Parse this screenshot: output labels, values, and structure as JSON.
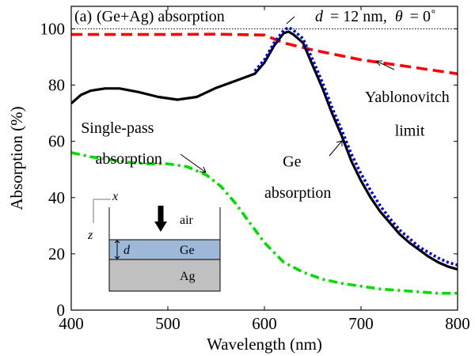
{
  "chart_data": {
    "type": "line",
    "panel_label": "(a)",
    "title": "(Ge+Ag) absorption",
    "params": {
      "d_symbol": "d",
      "d_value": "= 12 nm,",
      "theta_symbol": "θ",
      "theta_value": "= 0˚"
    },
    "xlabel": "Wavelength (nm)",
    "ylabel": "Absorption (%)",
    "xlim": [
      400,
      800
    ],
    "ylim": [
      0,
      108
    ],
    "x_ticks": [
      400,
      500,
      600,
      700,
      800
    ],
    "y_ticks": [
      0,
      20,
      40,
      60,
      80,
      100
    ],
    "reference_line": {
      "y": 100,
      "style": "dotted"
    },
    "series": [
      {
        "key": "yablonovitch",
        "color": "#ff0000",
        "style": "dashed",
        "points": [
          [
            400,
            98
          ],
          [
            450,
            98
          ],
          [
            500,
            98
          ],
          [
            550,
            98.1
          ],
          [
            600,
            97.8
          ],
          [
            620,
            95
          ],
          [
            650,
            92.5
          ],
          [
            700,
            89
          ],
          [
            750,
            86.5
          ],
          [
            800,
            84
          ]
        ]
      },
      {
        "key": "ge_ag",
        "color": "#000000",
        "style": "solid",
        "points": [
          [
            400,
            73.5
          ],
          [
            410,
            76.5
          ],
          [
            420,
            78
          ],
          [
            435,
            78.8
          ],
          [
            450,
            78.8
          ],
          [
            470,
            77.5
          ],
          [
            490,
            75.8
          ],
          [
            510,
            74.8
          ],
          [
            530,
            75.8
          ],
          [
            550,
            79
          ],
          [
            570,
            81.5
          ],
          [
            590,
            84
          ],
          [
            600,
            88
          ],
          [
            610,
            94
          ],
          [
            620,
            98.5
          ],
          [
            625,
            99
          ],
          [
            630,
            98
          ],
          [
            640,
            95
          ],
          [
            650,
            87
          ],
          [
            660,
            79
          ],
          [
            670,
            70
          ],
          [
            680,
            62
          ],
          [
            690,
            53
          ],
          [
            700,
            46
          ],
          [
            710,
            40
          ],
          [
            720,
            35
          ],
          [
            730,
            31
          ],
          [
            740,
            27
          ],
          [
            750,
            24
          ],
          [
            760,
            21.5
          ],
          [
            770,
            19
          ],
          [
            780,
            17
          ],
          [
            790,
            15.5
          ],
          [
            800,
            14.5
          ]
        ]
      },
      {
        "key": "ge",
        "color": "#0000ee",
        "style": "dotted",
        "points": [
          [
            590,
            85
          ],
          [
            600,
            89
          ],
          [
            610,
            95
          ],
          [
            620,
            99.5
          ],
          [
            625,
            100.5
          ],
          [
            630,
            99.5
          ],
          [
            640,
            96.5
          ],
          [
            650,
            89
          ],
          [
            660,
            81
          ],
          [
            670,
            72
          ],
          [
            680,
            64
          ],
          [
            690,
            55.5
          ],
          [
            700,
            48.5
          ],
          [
            710,
            42.5
          ],
          [
            720,
            37
          ],
          [
            730,
            32.5
          ],
          [
            740,
            28.5
          ],
          [
            750,
            25.5
          ],
          [
            760,
            22.5
          ],
          [
            770,
            20.5
          ],
          [
            780,
            18.5
          ],
          [
            790,
            17
          ],
          [
            800,
            16
          ]
        ]
      },
      {
        "key": "single_pass",
        "color": "#00dd00",
        "style": "dashdot",
        "points": [
          [
            400,
            56
          ],
          [
            420,
            54.5
          ],
          [
            440,
            53.5
          ],
          [
            460,
            52.5
          ],
          [
            480,
            52
          ],
          [
            500,
            52
          ],
          [
            520,
            51
          ],
          [
            540,
            48
          ],
          [
            555,
            44
          ],
          [
            570,
            38
          ],
          [
            585,
            31
          ],
          [
            600,
            24
          ],
          [
            620,
            17
          ],
          [
            640,
            13.5
          ],
          [
            660,
            11
          ],
          [
            680,
            9.5
          ],
          [
            700,
            8.5
          ],
          [
            720,
            7.5
          ],
          [
            740,
            7
          ],
          [
            760,
            6.5
          ],
          [
            780,
            6
          ],
          [
            800,
            6
          ]
        ]
      }
    ],
    "annotations": [
      {
        "key": "yablonovitch_1",
        "text": "Yablonovitch",
        "x": 704,
        "y": 74
      },
      {
        "key": "yablonovitch_2",
        "text": "limit",
        "x": 735,
        "y": 62
      },
      {
        "key": "single_pass_1",
        "text": "Single-pass",
        "x": 410,
        "y": 63
      },
      {
        "key": "single_pass_2",
        "text": "absorption",
        "x": 425,
        "y": 52
      },
      {
        "key": "ge_1",
        "text": "Ge",
        "x": 619,
        "y": 51
      },
      {
        "key": "ge_2",
        "text": "absorption",
        "x": 600,
        "y": 40
      }
    ],
    "inset": {
      "x_axis": "x",
      "z_axis": "z",
      "air": "air",
      "d_label": "d",
      "ge": "Ge",
      "ag": "Ag",
      "colors": {
        "ge_layer": "#9db8d9",
        "ag_layer": "#c0c0c0"
      }
    }
  }
}
